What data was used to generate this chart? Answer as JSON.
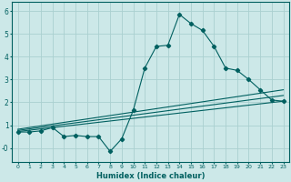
{
  "xlabel": "Humidex (Indice chaleur)",
  "bg_color": "#cce8e8",
  "grid_color": "#aad0d0",
  "line_color": "#006060",
  "x": [
    0,
    1,
    2,
    3,
    4,
    5,
    6,
    7,
    8,
    9,
    10,
    11,
    12,
    13,
    14,
    15,
    16,
    17,
    18,
    19,
    20,
    21,
    22,
    23
  ],
  "curve1": [
    0.7,
    0.7,
    0.75,
    0.9,
    0.5,
    0.55,
    0.5,
    0.5,
    -0.15,
    0.4,
    1.65,
    3.5,
    4.45,
    4.5,
    5.85,
    5.45,
    5.15,
    4.45,
    3.5,
    3.4,
    3.0,
    2.55,
    2.1,
    2.05
  ],
  "line2_x": [
    0,
    23
  ],
  "line2_y": [
    0.72,
    2.05
  ],
  "line3_x": [
    0,
    23
  ],
  "line3_y": [
    0.82,
    2.55
  ],
  "line4_x": [
    0,
    23
  ],
  "line4_y": [
    0.77,
    2.3
  ],
  "ylim": [
    -0.6,
    6.4
  ],
  "xlim": [
    -0.5,
    23.5
  ],
  "yticks": [
    0,
    1,
    2,
    3,
    4,
    5,
    6
  ],
  "ytick_labels": [
    "-0",
    "1",
    "2",
    "3",
    "4",
    "5",
    "6"
  ],
  "xticks": [
    0,
    1,
    2,
    3,
    4,
    5,
    6,
    7,
    8,
    9,
    10,
    11,
    12,
    13,
    14,
    15,
    16,
    17,
    18,
    19,
    20,
    21,
    22,
    23
  ]
}
